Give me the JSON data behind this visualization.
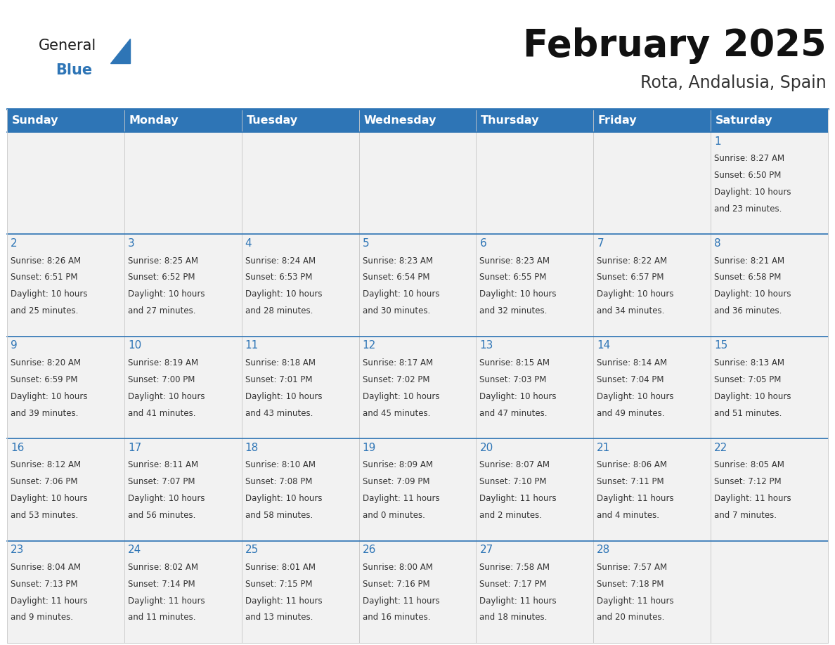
{
  "title": "February 2025",
  "subtitle": "Rota, Andalusia, Spain",
  "header_bg": "#2E75B6",
  "header_text_color": "#FFFFFF",
  "cell_bg_light": "#F2F2F2",
  "cell_bg_white": "#FFFFFF",
  "cell_border_color": "#CCCCCC",
  "row_separator_color": "#2E75B6",
  "day_number_color": "#2E75B6",
  "cell_text_color": "#333333",
  "days_of_week": [
    "Sunday",
    "Monday",
    "Tuesday",
    "Wednesday",
    "Thursday",
    "Friday",
    "Saturday"
  ],
  "week_rows": [
    {
      "days": [
        null,
        null,
        null,
        null,
        null,
        null,
        1
      ]
    },
    {
      "days": [
        2,
        3,
        4,
        5,
        6,
        7,
        8
      ]
    },
    {
      "days": [
        9,
        10,
        11,
        12,
        13,
        14,
        15
      ]
    },
    {
      "days": [
        16,
        17,
        18,
        19,
        20,
        21,
        22
      ]
    },
    {
      "days": [
        23,
        24,
        25,
        26,
        27,
        28,
        null
      ]
    }
  ],
  "cell_data": {
    "1": {
      "sunrise": "8:27 AM",
      "sunset": "6:50 PM",
      "daylight_hours": 10,
      "daylight_minutes": 23
    },
    "2": {
      "sunrise": "8:26 AM",
      "sunset": "6:51 PM",
      "daylight_hours": 10,
      "daylight_minutes": 25
    },
    "3": {
      "sunrise": "8:25 AM",
      "sunset": "6:52 PM",
      "daylight_hours": 10,
      "daylight_minutes": 27
    },
    "4": {
      "sunrise": "8:24 AM",
      "sunset": "6:53 PM",
      "daylight_hours": 10,
      "daylight_minutes": 28
    },
    "5": {
      "sunrise": "8:23 AM",
      "sunset": "6:54 PM",
      "daylight_hours": 10,
      "daylight_minutes": 30
    },
    "6": {
      "sunrise": "8:23 AM",
      "sunset": "6:55 PM",
      "daylight_hours": 10,
      "daylight_minutes": 32
    },
    "7": {
      "sunrise": "8:22 AM",
      "sunset": "6:57 PM",
      "daylight_hours": 10,
      "daylight_minutes": 34
    },
    "8": {
      "sunrise": "8:21 AM",
      "sunset": "6:58 PM",
      "daylight_hours": 10,
      "daylight_minutes": 36
    },
    "9": {
      "sunrise": "8:20 AM",
      "sunset": "6:59 PM",
      "daylight_hours": 10,
      "daylight_minutes": 39
    },
    "10": {
      "sunrise": "8:19 AM",
      "sunset": "7:00 PM",
      "daylight_hours": 10,
      "daylight_minutes": 41
    },
    "11": {
      "sunrise": "8:18 AM",
      "sunset": "7:01 PM",
      "daylight_hours": 10,
      "daylight_minutes": 43
    },
    "12": {
      "sunrise": "8:17 AM",
      "sunset": "7:02 PM",
      "daylight_hours": 10,
      "daylight_minutes": 45
    },
    "13": {
      "sunrise": "8:15 AM",
      "sunset": "7:03 PM",
      "daylight_hours": 10,
      "daylight_minutes": 47
    },
    "14": {
      "sunrise": "8:14 AM",
      "sunset": "7:04 PM",
      "daylight_hours": 10,
      "daylight_minutes": 49
    },
    "15": {
      "sunrise": "8:13 AM",
      "sunset": "7:05 PM",
      "daylight_hours": 10,
      "daylight_minutes": 51
    },
    "16": {
      "sunrise": "8:12 AM",
      "sunset": "7:06 PM",
      "daylight_hours": 10,
      "daylight_minutes": 53
    },
    "17": {
      "sunrise": "8:11 AM",
      "sunset": "7:07 PM",
      "daylight_hours": 10,
      "daylight_minutes": 56
    },
    "18": {
      "sunrise": "8:10 AM",
      "sunset": "7:08 PM",
      "daylight_hours": 10,
      "daylight_minutes": 58
    },
    "19": {
      "sunrise": "8:09 AM",
      "sunset": "7:09 PM",
      "daylight_hours": 11,
      "daylight_minutes": 0
    },
    "20": {
      "sunrise": "8:07 AM",
      "sunset": "7:10 PM",
      "daylight_hours": 11,
      "daylight_minutes": 2
    },
    "21": {
      "sunrise": "8:06 AM",
      "sunset": "7:11 PM",
      "daylight_hours": 11,
      "daylight_minutes": 4
    },
    "22": {
      "sunrise": "8:05 AM",
      "sunset": "7:12 PM",
      "daylight_hours": 11,
      "daylight_minutes": 7
    },
    "23": {
      "sunrise": "8:04 AM",
      "sunset": "7:13 PM",
      "daylight_hours": 11,
      "daylight_minutes": 9
    },
    "24": {
      "sunrise": "8:02 AM",
      "sunset": "7:14 PM",
      "daylight_hours": 11,
      "daylight_minutes": 11
    },
    "25": {
      "sunrise": "8:01 AM",
      "sunset": "7:15 PM",
      "daylight_hours": 11,
      "daylight_minutes": 13
    },
    "26": {
      "sunrise": "8:00 AM",
      "sunset": "7:16 PM",
      "daylight_hours": 11,
      "daylight_minutes": 16
    },
    "27": {
      "sunrise": "7:58 AM",
      "sunset": "7:17 PM",
      "daylight_hours": 11,
      "daylight_minutes": 18
    },
    "28": {
      "sunrise": "7:57 AM",
      "sunset": "7:18 PM",
      "daylight_hours": 11,
      "daylight_minutes": 20
    }
  },
  "fig_width": 11.88,
  "fig_height": 9.18,
  "dpi": 100
}
